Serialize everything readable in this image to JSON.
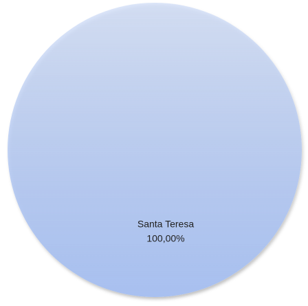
{
  "chart_data": {
    "type": "pie",
    "categories": [
      "Santa Teresa"
    ],
    "values": [
      100
    ],
    "value_labels": [
      "100,00%"
    ],
    "color": "#a8c0f0"
  }
}
